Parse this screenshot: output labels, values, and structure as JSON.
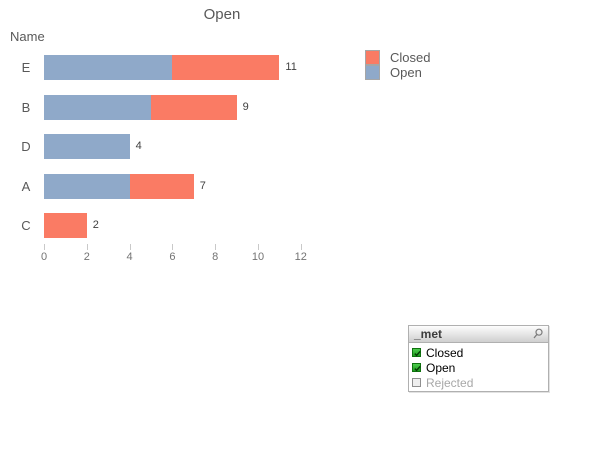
{
  "chart": {
    "title": "Open",
    "axis_dim_label": "Name"
  },
  "chart_data": {
    "type": "bar",
    "orientation": "horizontal",
    "stacked": true,
    "title": "Open",
    "dimension_label": "Name",
    "categories": [
      "E",
      "B",
      "D",
      "A",
      "C"
    ],
    "series": [
      {
        "name": "Open",
        "color": "#8fa9c9",
        "values": [
          6,
          5,
          4,
          4,
          0
        ]
      },
      {
        "name": "Closed",
        "color": "#fa7b64",
        "values": [
          5,
          4,
          0,
          3,
          2
        ]
      }
    ],
    "totals": [
      11,
      9,
      4,
      7,
      2
    ],
    "x_ticks": [
      0,
      2,
      4,
      6,
      8,
      10,
      12
    ],
    "xlim": [
      0,
      12
    ],
    "grid": false,
    "legend_position": "top-right",
    "legend": [
      {
        "label": "Closed",
        "color": "#fa7b64"
      },
      {
        "label": "Open",
        "color": "#8fa9c9"
      }
    ]
  },
  "listbox": {
    "title": "_met",
    "search_icon": "magnifier-icon",
    "items": [
      {
        "label": "Closed",
        "selected": true
      },
      {
        "label": "Open",
        "selected": true
      },
      {
        "label": "Rejected",
        "selected": false
      }
    ]
  },
  "colors": {
    "title_text": "#595959",
    "tick_text": "#737373",
    "value_text": "#404040",
    "open_blue": "#8fa9c9",
    "closed_red": "#fa7b64",
    "checkbox_green": "#2eb52e"
  }
}
